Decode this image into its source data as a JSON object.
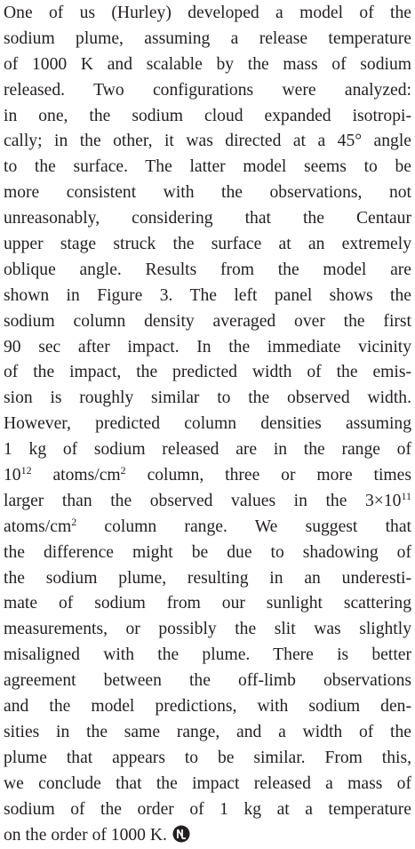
{
  "lines": [
    [
      "One of us (Hurley) developed a model of the"
    ],
    [
      "sodium plume, assuming a release temperature"
    ],
    [
      "of 1000 K and scalable by the mass of sodium"
    ],
    [
      "released.  Two configurations were analyzed:"
    ],
    [
      "in one, the sodium cloud expanded isotropi-"
    ],
    [
      "cally; in the other, it was directed at a 45° angle"
    ],
    [
      "to the surface.  The latter model seems to be"
    ],
    [
      "more consistent with the observations, not"
    ],
    [
      "unreasonably, considering that the Centaur"
    ],
    [
      "upper stage struck the surface at an extremely"
    ],
    [
      "oblique angle.  Results from the model are"
    ],
    [
      "shown in Figure 3.  The left panel shows the"
    ],
    [
      "sodium column density averaged over the first"
    ],
    [
      "90 sec after impact.  In the immediate vicinity"
    ],
    [
      "of the impact, the predicted width of the emis-"
    ],
    [
      "sion is roughly similar to the observed width."
    ],
    [
      "However, predicted column densities assuming"
    ],
    [
      "1 kg of sodium released are in the range of"
    ],
    [
      "10",
      {
        "sup": "12"
      },
      " atoms/cm",
      {
        "sup": "2"
      },
      " column, three or more times"
    ],
    [
      "larger than the observed values in the 3×10",
      {
        "sup": "11"
      }
    ],
    [
      "atoms/cm",
      {
        "sup": "2"
      },
      " column range.  We suggest that"
    ],
    [
      "the difference might be due to shadowing of"
    ],
    [
      "the sodium plume, resulting in an underesti-"
    ],
    [
      "mate of sodium from our sunlight scattering"
    ],
    [
      "measurements, or possibly the slit was slightly"
    ],
    [
      "misaligned with the plume.  There is better"
    ],
    [
      "agreement between the off-limb observations"
    ],
    [
      "and the model predictions, with sodium den-"
    ],
    [
      "sities in the same range, and a width of the"
    ],
    [
      "plume that appears to be similar.  From this,"
    ],
    [
      "we conclude that the impact released a mass of"
    ],
    [
      "sodium of the order of 1 kg at a temperature"
    ],
    [
      "on the order of 1000 K."
    ]
  ]
}
